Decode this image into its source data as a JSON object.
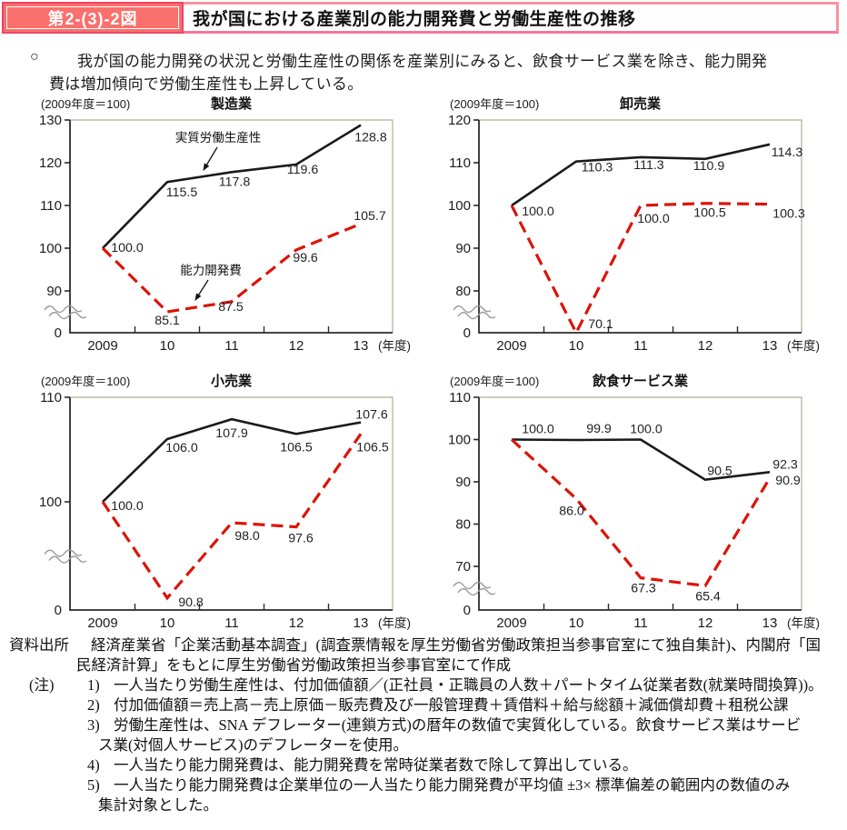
{
  "header": {
    "figure_label": "第2-(3)-2図",
    "title": "我が国における産業別の能力開発費と労働生産性の推移"
  },
  "intro": {
    "bullet": "○",
    "line1": "我が国の能力開発の状況と労働生産性の関係を産業別にみると、飲食サービス業を除き、能力開発",
    "line2": "費は増加傾向で労働生産性も上昇している。"
  },
  "chart_data": [
    {
      "type": "line",
      "name": "manufacturing",
      "title": "製造業",
      "unit_label": "(2009年度＝100)",
      "x_labels": [
        "2009",
        "10",
        "11",
        "12",
        "13"
      ],
      "x_axis_suffix": "(年度)",
      "y_ticks": [
        130,
        120,
        110,
        100,
        90
      ],
      "y_base_label": "0",
      "y_axis_break": true,
      "series": [
        {
          "name": "実質労働生産性",
          "color": "#1a1a1a",
          "dash": false,
          "values": [
            100.0,
            115.5,
            117.8,
            119.6,
            128.8
          ]
        },
        {
          "name": "能力開発費",
          "color": "#dc1408",
          "dash": true,
          "values": [
            100.0,
            85.1,
            87.5,
            99.6,
            105.7
          ]
        }
      ],
      "series_labels": [
        "実質労働生産性",
        "能力開発費"
      ]
    },
    {
      "type": "line",
      "name": "wholesale",
      "title": "卸売業",
      "unit_label": "(2009年度＝100)",
      "x_labels": [
        "2009",
        "10",
        "11",
        "12",
        "13"
      ],
      "x_axis_suffix": "(年度)",
      "y_ticks": [
        120,
        110,
        100,
        90,
        80
      ],
      "y_base_label": "0",
      "y_axis_break": true,
      "series": [
        {
          "name": "実質労働生産性",
          "color": "#1a1a1a",
          "dash": false,
          "values": [
            100.0,
            110.3,
            111.3,
            110.9,
            114.3
          ]
        },
        {
          "name": "能力開発費",
          "color": "#dc1408",
          "dash": true,
          "values": [
            100.0,
            70.1,
            100.0,
            100.5,
            100.3
          ]
        }
      ]
    },
    {
      "type": "line",
      "name": "retail",
      "title": "小売業",
      "unit_label": "(2009年度＝100)",
      "x_labels": [
        "2009",
        "10",
        "11",
        "12",
        "13"
      ],
      "x_axis_suffix": "(年度)",
      "y_ticks": [
        110,
        100
      ],
      "y_base_label": "0",
      "y_axis_break": true,
      "series": [
        {
          "name": "実質労働生産性",
          "color": "#1a1a1a",
          "dash": false,
          "values": [
            100.0,
            106.0,
            107.9,
            106.5,
            107.6
          ]
        },
        {
          "name": "能力開発費",
          "color": "#dc1408",
          "dash": true,
          "values": [
            100.0,
            90.8,
            98.0,
            97.6,
            106.5
          ]
        }
      ]
    },
    {
      "type": "line",
      "name": "food-service",
      "title": "飲食サービス業",
      "unit_label": "(2009年度＝100)",
      "x_labels": [
        "2009",
        "10",
        "11",
        "12",
        "13"
      ],
      "x_axis_suffix": "(年度)",
      "y_ticks": [
        110,
        100,
        90,
        80,
        70
      ],
      "y_base_label": "0",
      "y_axis_break": true,
      "series": [
        {
          "name": "実質労働生産性",
          "color": "#1a1a1a",
          "dash": false,
          "values": [
            100.0,
            99.9,
            100.0,
            90.5,
            92.3
          ]
        },
        {
          "name": "能力開発費",
          "color": "#dc1408",
          "dash": true,
          "values": [
            100.0,
            86.0,
            67.3,
            65.4,
            90.9
          ]
        }
      ]
    }
  ],
  "footer": {
    "source_label": "資料出所",
    "source_line1": "経済産業省「企業活動基本調査」(調査票情報を厚生労働省労働政策担当参事官室にて独自集計)、内閣府「国",
    "source_line2": "民経済計算」をもとに厚生労働省労働政策担当参事官室にて作成",
    "note_label": "(注)",
    "notes": [
      {
        "num": "1)",
        "lines": [
          "一人当たり労働生産性は、付加価値額／(正社員・正職員の人数＋パートタイム従業者数(就業時間換算))。"
        ]
      },
      {
        "num": "2)",
        "lines": [
          "付加価値額＝売上高－売上原価－販売費及び一般管理費＋賃借料＋給与総額＋減価償却費＋租税公課"
        ]
      },
      {
        "num": "3)",
        "lines": [
          "労働生産性は、SNA デフレーター(連鎖方式)の暦年の数値で実質化している。飲食サービス業はサービ",
          "ス業(対個人サービス)のデフレーターを使用。"
        ]
      },
      {
        "num": "4)",
        "lines": [
          "一人当たり能力開発費は、能力開発費を常時従業者数で除して算出している。"
        ]
      },
      {
        "num": "5)",
        "lines": [
          "一人当たり能力開発費は企業単位の一人当たり能力開発費が平均値 ±3× 標準偏差の範囲内の数値のみ",
          "集計対象とした。"
        ]
      }
    ]
  }
}
